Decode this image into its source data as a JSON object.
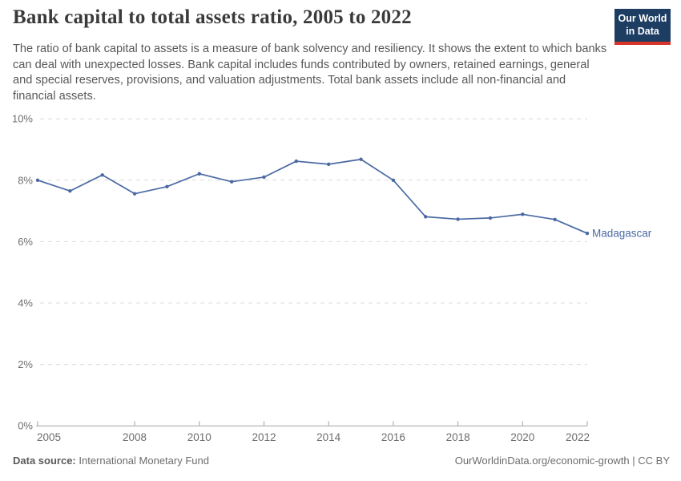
{
  "header": {
    "title": "Bank capital to total assets ratio, 2005 to 2022",
    "subtitle": "The ratio of bank capital to assets is a measure of bank solvency and resiliency. It shows the extent to which banks can deal with unexpected losses. Bank capital includes funds contributed by owners, retained earnings, general and special reserves, provisions, and valuation adjustments. Total bank assets include all non-financial and financial assets.",
    "logo_line1": "Our World",
    "logo_line2": "in Data"
  },
  "chart_data": {
    "type": "line",
    "title": "Bank capital to total assets ratio, 2005 to 2022",
    "x": [
      2005,
      2006,
      2007,
      2008,
      2009,
      2010,
      2011,
      2012,
      2013,
      2014,
      2015,
      2016,
      2017,
      2018,
      2019,
      2020,
      2021,
      2022
    ],
    "series": [
      {
        "name": "Madagascar",
        "color": "#4a69a3",
        "values": [
          8.0,
          7.65,
          8.17,
          7.56,
          7.79,
          8.21,
          7.95,
          8.1,
          8.62,
          8.52,
          8.68,
          8.0,
          6.81,
          6.73,
          6.77,
          6.89,
          6.72,
          6.27
        ]
      }
    ],
    "xlabel": "",
    "ylabel": "",
    "ylim": [
      0,
      10
    ],
    "ytick_values": [
      0,
      2,
      4,
      6,
      8,
      10
    ],
    "ytick_labels": [
      "0%",
      "2%",
      "4%",
      "6%",
      "8%",
      "10%"
    ],
    "xtick_values": [
      2005,
      2008,
      2010,
      2012,
      2014,
      2016,
      2018,
      2020,
      2022
    ],
    "grid": "horizontal-dashed",
    "legend_position": "end-of-line-label"
  },
  "colors": {
    "line": "#4a69a3",
    "gridline": "#dcdcdc",
    "axis": "#a3a3a3",
    "tick_label": "#6e6e6e",
    "logo_bg": "#1d3d63",
    "logo_accent": "#d8352a"
  },
  "footer": {
    "data_source_label": "Data source:",
    "data_source_value": "International Monetary Fund",
    "attribution": "OurWorldinData.org/economic-growth | CC BY"
  }
}
